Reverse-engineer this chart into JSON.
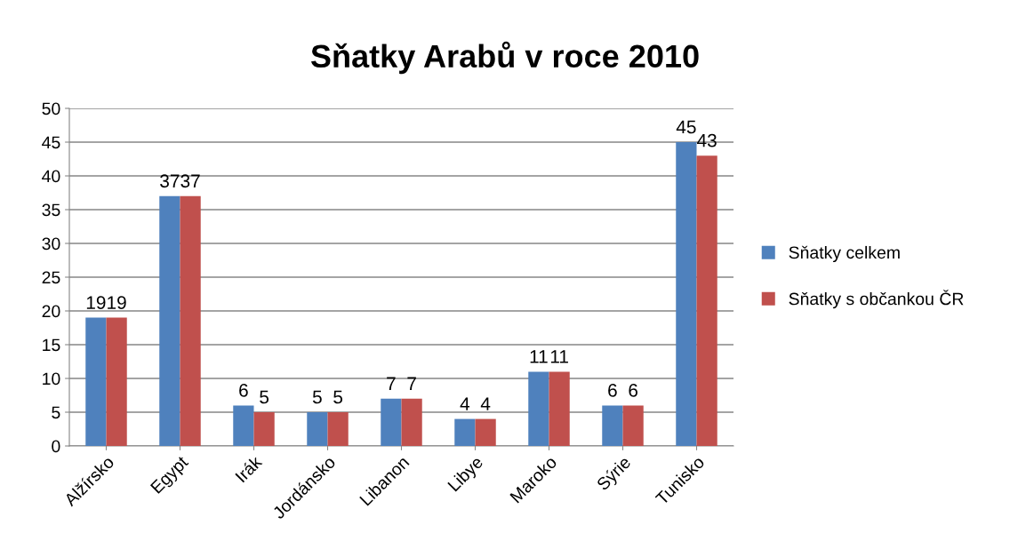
{
  "chart_data": {
    "type": "bar",
    "title": "Sňatky Arabů v roce 2010",
    "categories": [
      "Alžírsko",
      "Egypt",
      "Irák",
      "Jordánsko",
      "Libanon",
      "Libye",
      "Maroko",
      "Sýrie",
      "Tunisko"
    ],
    "series": [
      {
        "name": "Sňatky celkem",
        "color": "#4f81bd",
        "values": [
          19,
          37,
          6,
          5,
          7,
          4,
          11,
          6,
          45
        ]
      },
      {
        "name": "Sňatky s občankou ČR",
        "color": "#c0504d",
        "values": [
          19,
          37,
          5,
          5,
          7,
          4,
          11,
          6,
          43
        ]
      }
    ],
    "ylim": [
      0,
      50
    ],
    "yticks": [
      0,
      5,
      10,
      15,
      20,
      25,
      30,
      35,
      40,
      45,
      50
    ],
    "grid": "y",
    "legend": "right",
    "data_labels": true
  }
}
